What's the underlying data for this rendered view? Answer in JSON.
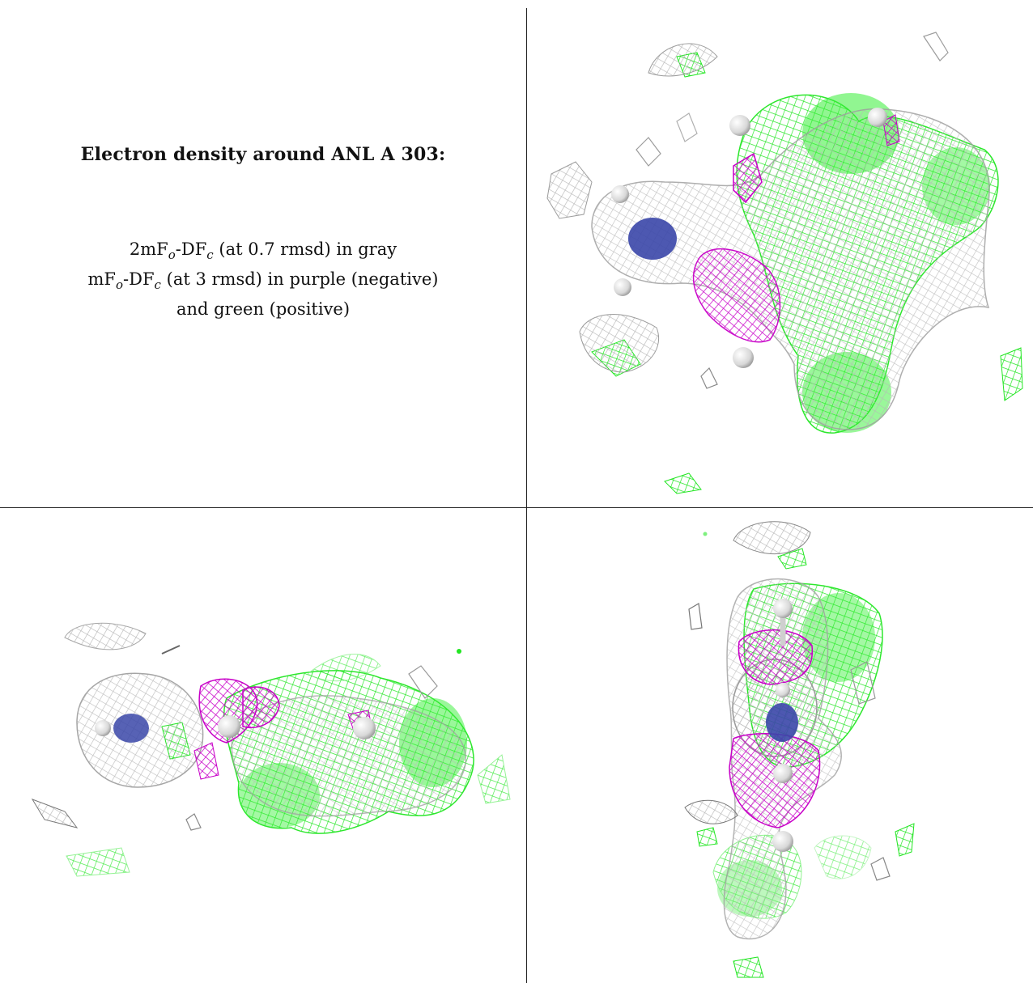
{
  "caption": {
    "title": "Electron density around ANL A 303:",
    "line1_symbol": "2mF",
    "line1_sub_o": "o",
    "line1_mid": "-DF",
    "line1_sub_c": "c",
    "line1_rest": " (at 0.7 rmsd) in gray",
    "line2_symbol": "mF",
    "line2_sub_o": "o",
    "line2_mid": "-DF",
    "line2_sub_c": "c",
    "line2_rest": " (at 3 rmsd) in purple (negative)",
    "line3": "and green (positive)"
  },
  "colors": {
    "gray_mesh": "#b8b8b8",
    "purple_mesh": "#c800c8",
    "green_mesh": "#22e622",
    "atom_blue": "#3a46a8",
    "hydrogen": "#e6e6e6"
  },
  "views": [
    {
      "name": "view-top-right"
    },
    {
      "name": "view-bottom-left"
    },
    {
      "name": "view-bottom-right"
    }
  ]
}
